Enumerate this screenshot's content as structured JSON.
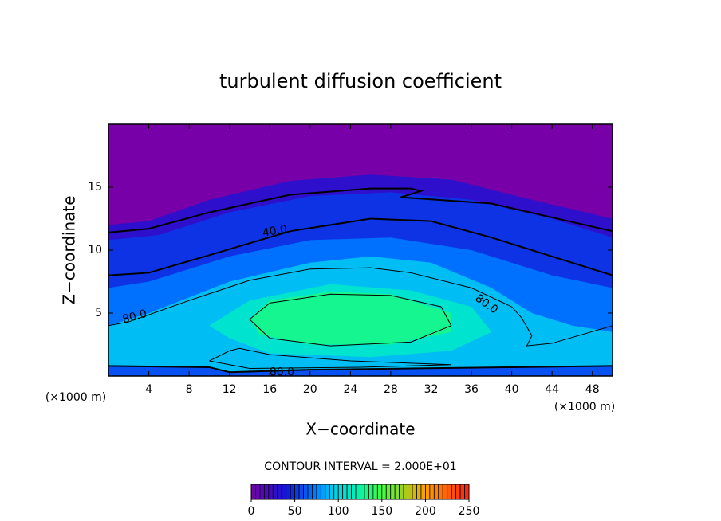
{
  "chart_data": {
    "type": "contour",
    "title": "turbulent diffusion coefficient",
    "xlabel": "X−coordinate",
    "ylabel": "Z−coordinate",
    "unit_labels": [
      "(×1000 m)",
      "(×1000 m)"
    ],
    "xlim": [
      0,
      50
    ],
    "ylim": [
      0,
      20
    ],
    "xticks": [
      4,
      8,
      12,
      16,
      20,
      24,
      28,
      32,
      36,
      40,
      44,
      48
    ],
    "yticks": [
      5,
      10,
      15
    ],
    "colormap": [
      {
        "value": 0,
        "color": "#7800a8"
      },
      {
        "value": 40,
        "color": "#1414d8"
      },
      {
        "value": 70,
        "color": "#0070ff"
      },
      {
        "value": 95,
        "color": "#00d0f0"
      },
      {
        "value": 120,
        "color": "#00f0b8"
      },
      {
        "value": 150,
        "color": "#40ff40"
      },
      {
        "value": 200,
        "color": "#ffa000"
      },
      {
        "value": 250,
        "color": "#ff2010"
      }
    ],
    "fills": [
      {
        "level": 0,
        "x": [
          0,
          0,
          50,
          50
        ],
        "y": [
          0,
          20,
          20,
          0
        ]
      },
      {
        "level": 30,
        "x": [
          0,
          0,
          4,
          10,
          18,
          26,
          34,
          42,
          50,
          50
        ],
        "y": [
          0,
          12,
          12.3,
          14,
          15.5,
          16,
          15.6,
          14,
          12.5,
          0
        ]
      },
      {
        "level": 50,
        "x": [
          0,
          0,
          5,
          12,
          20,
          28,
          36,
          44,
          50,
          50
        ],
        "y": [
          0,
          10.8,
          11.2,
          13,
          14.3,
          14.6,
          14,
          12.5,
          11,
          0
        ]
      },
      {
        "level": 70,
        "x": [
          0,
          0,
          4,
          12,
          20,
          28,
          36,
          44,
          50,
          50
        ],
        "y": [
          0,
          7,
          7.5,
          9.5,
          10.8,
          11,
          10,
          8,
          7,
          0
        ]
      },
      {
        "level": 90,
        "x": [
          0,
          0,
          4,
          12,
          20,
          26,
          32,
          38,
          42,
          46,
          50,
          50
        ],
        "y": [
          0,
          4,
          5,
          7.5,
          9,
          9.5,
          9,
          7,
          5,
          4,
          3.5,
          0
        ]
      },
      {
        "level": 110,
        "x": [
          10,
          14,
          22,
          30,
          36,
          38,
          34,
          26,
          16,
          12
        ],
        "y": [
          4,
          6,
          7.3,
          6.8,
          5.5,
          3.5,
          2,
          1.5,
          1.8,
          3
        ]
      },
      {
        "level": 130,
        "x": [
          14,
          16,
          22,
          28,
          34,
          34,
          28,
          20,
          15
        ],
        "y": [
          4.5,
          6,
          6.7,
          6.5,
          5,
          3.5,
          2.5,
          2.5,
          3.3
        ]
      },
      {
        "level": 60,
        "x": [
          0,
          0,
          10,
          12,
          20,
          30,
          40,
          50,
          50
        ],
        "y": [
          0,
          0.8,
          0.7,
          0.3,
          0.5,
          0.6,
          0.7,
          0.8,
          0
        ]
      }
    ],
    "contours": [
      {
        "line_width": 2,
        "x": [
          0,
          4,
          10,
          18,
          26,
          30,
          31,
          29,
          38,
          44,
          50
        ],
        "y": [
          11.4,
          11.7,
          13,
          14.4,
          14.9,
          14.9,
          14.7,
          14.2,
          13.7,
          12.6,
          11.5
        ]
      },
      {
        "line_width": 2,
        "x": [
          0,
          4,
          10,
          18,
          26,
          32,
          38,
          44,
          50
        ],
        "y": [
          8,
          8.2,
          9.6,
          11.5,
          12.5,
          12.3,
          11,
          9.5,
          8
        ]
      },
      {
        "line_width": 1,
        "x": [
          0,
          2,
          8,
          14,
          20,
          26,
          30,
          36,
          40,
          41,
          42,
          41.5,
          44,
          50
        ],
        "y": [
          4,
          4.3,
          6,
          7.6,
          8.5,
          8.6,
          8.2,
          7,
          5.5,
          4.6,
          3.2,
          2.4,
          2.6,
          4
        ]
      },
      {
        "line_width": 1,
        "x": [
          14,
          16,
          22,
          28,
          33,
          34,
          30,
          22,
          16,
          14
        ],
        "y": [
          4.5,
          5.8,
          6.5,
          6.4,
          5.5,
          4,
          2.7,
          2.4,
          3,
          4.5
        ]
      },
      {
        "line_width": 1,
        "x": [
          10,
          12,
          13,
          16,
          24,
          34,
          25,
          14,
          10
        ],
        "y": [
          1.2,
          2,
          2.2,
          1.7,
          1.2,
          0.9,
          0.7,
          0.6,
          1.2
        ]
      },
      {
        "line_width": 2,
        "x": [
          0,
          10,
          12,
          20,
          30,
          40,
          50
        ],
        "y": [
          0.8,
          0.7,
          0.3,
          0.5,
          0.6,
          0.7,
          0.8
        ]
      }
    ],
    "contour_labels": [
      {
        "text": "40.0",
        "x": 16.5,
        "y": 11.5,
        "angle": -10
      },
      {
        "text": "80.0",
        "x": 37.5,
        "y": 5.7,
        "angle": 35
      },
      {
        "text": "80.0",
        "x": 2.6,
        "y": 4.7,
        "angle": -15
      },
      {
        "text": "80.0",
        "x": 17.2,
        "y": 0.3,
        "angle": 0
      }
    ],
    "contour_interval_label": "CONTOUR INTERVAL = 2.000E+01",
    "colorbar_lim": [
      0,
      250
    ],
    "colorbar_step": 5,
    "colorbar_ticks": [
      0,
      50,
      100,
      150,
      200,
      250
    ]
  }
}
